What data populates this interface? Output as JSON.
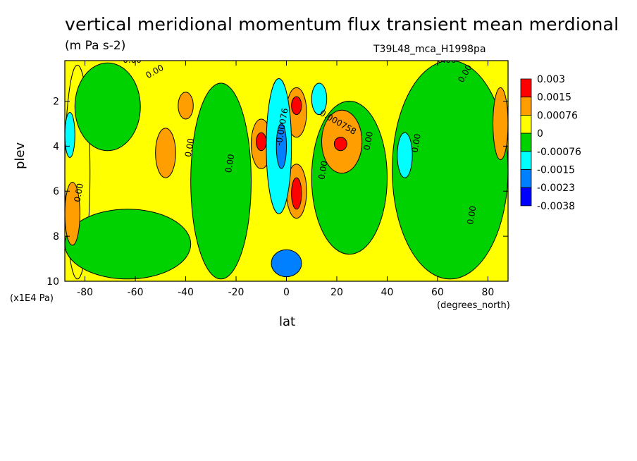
{
  "chart_data": {
    "type": "heatmap",
    "title": "vertical meridional momentum flux transient mean merdional",
    "units": "(m Pa s-2)",
    "run_label": "T39L48_mca_H1998pa",
    "xlabel": "lat",
    "x_units": "(degrees_north)",
    "ylabel": "plev",
    "y_units": "(x1E4 Pa)",
    "xlim": [
      -88,
      88
    ],
    "ylim": [
      10,
      0.2
    ],
    "x_ticks": [
      -80,
      -60,
      -40,
      -20,
      0,
      20,
      40,
      60,
      80
    ],
    "y_ticks": [
      2,
      4,
      6,
      8,
      10
    ],
    "colorbar": {
      "colors": [
        "#ff0000",
        "#ff9e00",
        "#ffff00",
        "#00d200",
        "#00ffff",
        "#0080ff",
        "#0000ff"
      ],
      "labels": [
        "0.003",
        "0.0015",
        "0.00076",
        "0",
        "-0.00076",
        "-0.0015",
        "-0.0023",
        "-0.0038"
      ]
    },
    "contour_labels": [
      "0.00",
      "0.00",
      "0.00",
      "0.00",
      "0.000758",
      "-0.00076",
      "0.00",
      "0.00",
      "0.00",
      "0.00",
      "0.00",
      "0.00",
      "0.00"
    ],
    "field_regions": [
      {
        "level": "0.00076",
        "lat": [
          -88,
          -78
        ],
        "plev": [
          0.4,
          9.9
        ]
      },
      {
        "level": "0",
        "lat": [
          -84,
          -58
        ],
        "plev": [
          0.3,
          4.2
        ]
      },
      {
        "level": "0",
        "lat": [
          -88,
          -38
        ],
        "plev": [
          6.8,
          9.9
        ]
      },
      {
        "level": "0",
        "lat": [
          -38,
          -14
        ],
        "plev": [
          1.2,
          9.9
        ]
      },
      {
        "level": "0",
        "lat": [
          10,
          40
        ],
        "plev": [
          2.0,
          8.8
        ]
      },
      {
        "level": "0",
        "lat": [
          42,
          88
        ],
        "plev": [
          0.2,
          9.9
        ]
      },
      {
        "level": "0.0015",
        "lat": [
          -52,
          -44
        ],
        "plev": [
          3.2,
          5.4
        ]
      },
      {
        "level": "0.0015",
        "lat": [
          -43,
          -37
        ],
        "plev": [
          1.6,
          2.8
        ]
      },
      {
        "level": "0.0015",
        "lat": [
          -88,
          -82
        ],
        "plev": [
          5.6,
          8.4
        ]
      },
      {
        "level": "0.0015",
        "lat": [
          14,
          30
        ],
        "plev": [
          2.4,
          5.2
        ]
      },
      {
        "level": "0.0015",
        "lat": [
          -14,
          -6
        ],
        "plev": [
          2.8,
          5.0
        ]
      },
      {
        "level": "0.0015",
        "lat": [
          0,
          8
        ],
        "plev": [
          1.4,
          3.6
        ]
      },
      {
        "level": "0.0015",
        "lat": [
          0,
          8
        ],
        "plev": [
          4.8,
          7.2
        ]
      },
      {
        "level": "0.0015",
        "lat": [
          82,
          88
        ],
        "plev": [
          1.4,
          4.6
        ]
      },
      {
        "level": "0.003",
        "lat": [
          -12,
          -8
        ],
        "plev": [
          3.4,
          4.2
        ]
      },
      {
        "level": "0.003",
        "lat": [
          2,
          6
        ],
        "plev": [
          5.4,
          6.8
        ]
      },
      {
        "level": "0.003",
        "lat": [
          2,
          6
        ],
        "plev": [
          1.8,
          2.6
        ]
      },
      {
        "level": "0.003",
        "lat": [
          19,
          24
        ],
        "plev": [
          3.6,
          4.2
        ]
      },
      {
        "level": "-0.00076",
        "lat": [
          -8,
          2
        ],
        "plev": [
          1.0,
          7.0
        ]
      },
      {
        "level": "-0.00076",
        "lat": [
          -88,
          -84
        ],
        "plev": [
          2.5,
          4.5
        ]
      },
      {
        "level": "-0.00076",
        "lat": [
          44,
          50
        ],
        "plev": [
          3.4,
          5.4
        ]
      },
      {
        "level": "-0.00076",
        "lat": [
          10,
          16
        ],
        "plev": [
          1.2,
          2.6
        ]
      },
      {
        "level": "-0.0015",
        "lat": [
          -4,
          0
        ],
        "plev": [
          3.0,
          5.0
        ]
      },
      {
        "level": "-0.0015",
        "lat": [
          -6,
          6
        ],
        "plev": [
          8.6,
          9.8
        ]
      }
    ]
  }
}
